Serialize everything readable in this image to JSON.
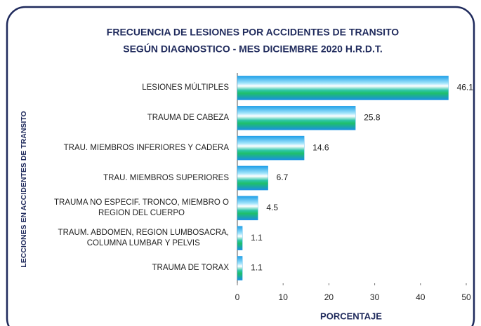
{
  "chart_data": {
    "type": "barh",
    "title": "FRECUENCIA DE LESIONES POR ACCIDENTES DE TRANSITO",
    "subtitle": "SEGÚN DIAGNOSTICO - MES DICIEMBRE 2020 H.R.D.T.",
    "x_label": "PORCENTAJE",
    "y_label": "LECCIONES EN ACCIDENTES DE TRANSITO",
    "categories": [
      "LESIONES MÚLTIPLES",
      "TRAUMA DE CABEZA",
      "TRAU. MIEMBROS INFERIORES Y CADERA",
      "TRAU. MIEMBROS SUPERIORES",
      "TRAUMA NO ESPECIF. TRONCO, MIEMBRO O\nREGION DEL CUERPO",
      "TRAUM. ABDOMEN, REGION LUMBOSACRA,\nCOLUMNA LUMBAR Y PELVIS",
      "TRAUMA DE TORAX"
    ],
    "values": [
      46.1,
      25.8,
      14.6,
      6.7,
      4.5,
      1.1,
      1.1
    ],
    "color": "#1ea0e6",
    "xlim": [
      0,
      50
    ],
    "xticks": [
      0,
      10,
      20,
      30,
      40,
      50
    ],
    "grid": false
  }
}
